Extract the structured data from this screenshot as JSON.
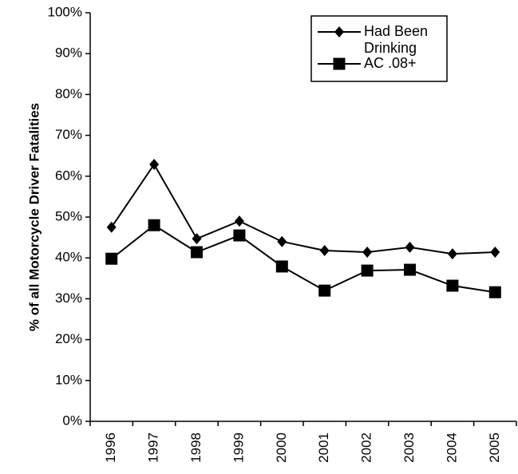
{
  "chart_data": {
    "type": "line",
    "y_axis_label": "% of all Motorcycle Driver Fatalities",
    "categories": [
      "1996",
      "1997",
      "1998",
      "1999",
      "2000",
      "2001",
      "2002",
      "2003",
      "2004",
      "2005"
    ],
    "series": [
      {
        "name": "Had Been Drinking",
        "color": "#000000",
        "marker": "diamond",
        "values": [
          47.5,
          62.9,
          44.7,
          49,
          44,
          41.8,
          41.4,
          42.6,
          41,
          41.4
        ]
      },
      {
        "name": "AC .08+",
        "color": "#000000",
        "marker": "square",
        "values": [
          39.8,
          48,
          41.4,
          45.5,
          37.9,
          32,
          36.9,
          37.1,
          33.2,
          31.6
        ]
      }
    ],
    "ylim": [
      0,
      100
    ],
    "yticks": [
      {
        "value": 0,
        "label": "0%"
      },
      {
        "value": 10,
        "label": "10%"
      },
      {
        "value": 20,
        "label": "20%"
      },
      {
        "value": 30,
        "label": "30%"
      },
      {
        "value": 40,
        "label": "40%"
      },
      {
        "value": 50,
        "label": "50%"
      },
      {
        "value": 60,
        "label": "60%"
      },
      {
        "value": 70,
        "label": "70%"
      },
      {
        "value": 80,
        "label": "80%"
      },
      {
        "value": 90,
        "label": "90%"
      },
      {
        "value": 100,
        "label": "100%"
      }
    ],
    "grid": false,
    "legend": "upper right"
  }
}
